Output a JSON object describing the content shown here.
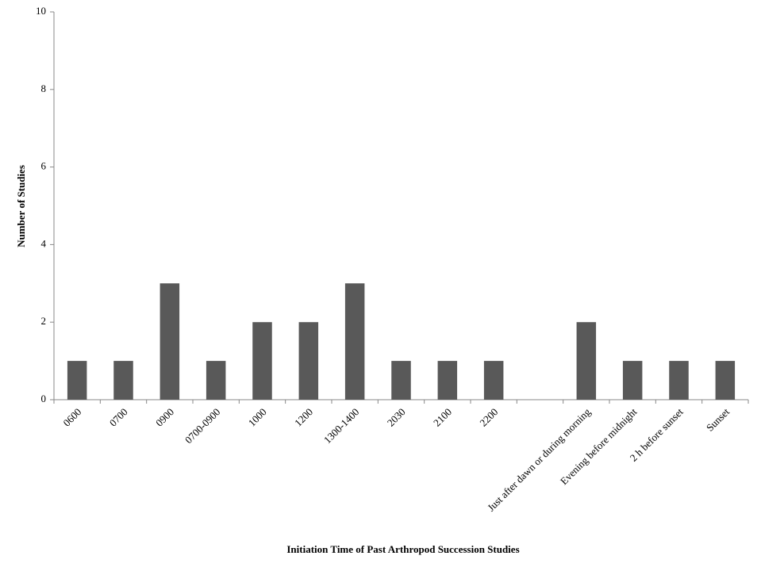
{
  "chart_data": {
    "type": "bar",
    "x_label": "Initiation  Time of Past Arthropod  Succession Studies",
    "y_label": "Number  of Studies",
    "categories": [
      "0600",
      "0700",
      "0900",
      "0700-0900",
      "1000",
      "1200",
      "1300-1400",
      "2030",
      "2100",
      "2200",
      null,
      "Just after dawn or during morning",
      "Evening before midnight",
      "2 h before sunset",
      "Sunset"
    ],
    "values": [
      1,
      1,
      3,
      1,
      2,
      2,
      3,
      1,
      1,
      1,
      null,
      2,
      1,
      1,
      1
    ],
    "color": "#595959",
    "ylim": [
      0,
      10
    ],
    "yticks": [
      0,
      2,
      4,
      6,
      8,
      10
    ],
    "grid": false
  }
}
